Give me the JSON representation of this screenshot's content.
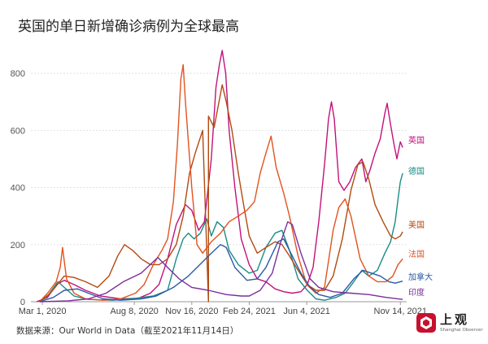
{
  "title": "英国的单日新增确诊病例为全球最高",
  "source": "数据来源：Our World in Data（截至2021年11月14日）",
  "logo": {
    "name": "上观",
    "subtitle": "Shanghai Observer"
  },
  "chart_data": {
    "type": "line",
    "x_range": [
      "2020-02-10",
      "2021-11-25"
    ],
    "ylim": [
      0,
      900
    ],
    "yticks": [
      0,
      200,
      400,
      600,
      800
    ],
    "xticks": [
      {
        "label": "Mar 1, 2020",
        "date": "2020-03-01"
      },
      {
        "label": "Aug 8, 2020",
        "date": "2020-08-08"
      },
      {
        "label": "Nov 16, 2020",
        "date": "2020-11-16"
      },
      {
        "label": "Feb 24, 2021",
        "date": "2021-02-24"
      },
      {
        "label": "Jun 4, 2021",
        "date": "2021-06-04"
      },
      {
        "label": "Nov 14, 2021",
        "date": "2021-11-14"
      }
    ],
    "grid": true,
    "legend": "end-labels",
    "series": [
      {
        "name": "英国",
        "color": "#c2127a",
        "points": [
          [
            "2020-02-20",
            0
          ],
          [
            "2020-03-10",
            15
          ],
          [
            "2020-03-25",
            60
          ],
          [
            "2020-04-08",
            75
          ],
          [
            "2020-04-25",
            60
          ],
          [
            "2020-05-15",
            40
          ],
          [
            "2020-06-10",
            20
          ],
          [
            "2020-07-15",
            10
          ],
          [
            "2020-08-15",
            12
          ],
          [
            "2020-09-05",
            30
          ],
          [
            "2020-09-20",
            60
          ],
          [
            "2020-10-05",
            150
          ],
          [
            "2020-10-20",
            270
          ],
          [
            "2020-11-05",
            340
          ],
          [
            "2020-11-16",
            320
          ],
          [
            "2020-11-28",
            250
          ],
          [
            "2020-12-08",
            280
          ],
          [
            "2020-12-20",
            500
          ],
          [
            "2020-12-28",
            750
          ],
          [
            "2021-01-03",
            830
          ],
          [
            "2021-01-08",
            880
          ],
          [
            "2021-01-14",
            800
          ],
          [
            "2021-01-20",
            600
          ],
          [
            "2021-01-30",
            400
          ],
          [
            "2021-02-10",
            220
          ],
          [
            "2021-02-24",
            130
          ],
          [
            "2021-03-10",
            80
          ],
          [
            "2021-03-25",
            70
          ],
          [
            "2021-04-10",
            45
          ],
          [
            "2021-04-25",
            35
          ],
          [
            "2021-05-10",
            30
          ],
          [
            "2021-05-25",
            35
          ],
          [
            "2021-06-05",
            60
          ],
          [
            "2021-06-15",
            120
          ],
          [
            "2021-06-25",
            280
          ],
          [
            "2021-07-05",
            480
          ],
          [
            "2021-07-12",
            640
          ],
          [
            "2021-07-17",
            700
          ],
          [
            "2021-07-22",
            640
          ],
          [
            "2021-07-30",
            420
          ],
          [
            "2021-08-08",
            390
          ],
          [
            "2021-08-18",
            420
          ],
          [
            "2021-08-28",
            470
          ],
          [
            "2021-09-08",
            500
          ],
          [
            "2021-09-15",
            420
          ],
          [
            "2021-09-22",
            460
          ],
          [
            "2021-10-01",
            520
          ],
          [
            "2021-10-10",
            570
          ],
          [
            "2021-10-18",
            660
          ],
          [
            "2021-10-22",
            695
          ],
          [
            "2021-10-28",
            620
          ],
          [
            "2021-11-03",
            550
          ],
          [
            "2021-11-08",
            500
          ],
          [
            "2021-11-14",
            560
          ],
          [
            "2021-11-18",
            540
          ]
        ]
      },
      {
        "name": "德国",
        "color": "#1a8c86",
        "points": [
          [
            "2020-02-25",
            0
          ],
          [
            "2020-03-10",
            20
          ],
          [
            "2020-03-28",
            70
          ],
          [
            "2020-04-08",
            50
          ],
          [
            "2020-04-25",
            20
          ],
          [
            "2020-05-20",
            8
          ],
          [
            "2020-07-01",
            5
          ],
          [
            "2020-08-10",
            12
          ],
          [
            "2020-09-10",
            20
          ],
          [
            "2020-10-05",
            40
          ],
          [
            "2020-10-20",
            150
          ],
          [
            "2020-11-01",
            220
          ],
          [
            "2020-11-10",
            240
          ],
          [
            "2020-11-20",
            220
          ],
          [
            "2020-12-01",
            240
          ],
          [
            "2020-12-12",
            290
          ],
          [
            "2020-12-20",
            230
          ],
          [
            "2020-12-30",
            280
          ],
          [
            "2021-01-10",
            260
          ],
          [
            "2021-01-20",
            180
          ],
          [
            "2021-02-05",
            130
          ],
          [
            "2021-02-24",
            100
          ],
          [
            "2021-03-10",
            110
          ],
          [
            "2021-03-25",
            190
          ],
          [
            "2021-04-10",
            240
          ],
          [
            "2021-04-22",
            250
          ],
          [
            "2021-05-05",
            180
          ],
          [
            "2021-05-20",
            80
          ],
          [
            "2021-06-05",
            40
          ],
          [
            "2021-06-20",
            10
          ],
          [
            "2021-07-05",
            5
          ],
          [
            "2021-07-25",
            15
          ],
          [
            "2021-08-10",
            30
          ],
          [
            "2021-08-25",
            70
          ],
          [
            "2021-09-08",
            110
          ],
          [
            "2021-09-20",
            90
          ],
          [
            "2021-10-05",
            110
          ],
          [
            "2021-10-18",
            170
          ],
          [
            "2021-10-28",
            210
          ],
          [
            "2021-11-05",
            280
          ],
          [
            "2021-11-10",
            360
          ],
          [
            "2021-11-14",
            420
          ],
          [
            "2021-11-18",
            450
          ]
        ]
      },
      {
        "name": "美国",
        "color": "#b24a12",
        "points": [
          [
            "2020-02-25",
            0
          ],
          [
            "2020-03-15",
            30
          ],
          [
            "2020-04-08",
            90
          ],
          [
            "2020-04-25",
            85
          ],
          [
            "2020-05-15",
            70
          ],
          [
            "2020-06-05",
            50
          ],
          [
            "2020-06-25",
            90
          ],
          [
            "2020-07-10",
            160
          ],
          [
            "2020-07-22",
            200
          ],
          [
            "2020-08-05",
            180
          ],
          [
            "2020-08-20",
            150
          ],
          [
            "2020-09-05",
            130
          ],
          [
            "2020-09-20",
            130
          ],
          [
            "2020-10-05",
            150
          ],
          [
            "2020-10-20",
            200
          ],
          [
            "2020-11-01",
            300
          ],
          [
            "2020-11-12",
            450
          ],
          [
            "2020-11-22",
            520
          ],
          [
            "2020-12-05",
            600
          ],
          [
            "2020-12-15,",
            0
          ],
          [
            "2020-12-15",
            650
          ],
          [
            "2020-12-25",
            610
          ],
          [
            "2021-01-08",
            760
          ],
          [
            "2021-01-15",
            700
          ],
          [
            "2021-01-25",
            600
          ],
          [
            "2021-02-05",
            450
          ],
          [
            "2021-02-15",
            330
          ],
          [
            "2021-02-24",
            230
          ],
          [
            "2021-03-10",
            170
          ],
          [
            "2021-03-25",
            190
          ],
          [
            "2021-04-10",
            210
          ],
          [
            "2021-04-22",
            200
          ],
          [
            "2021-05-05",
            160
          ],
          [
            "2021-05-20",
            110
          ],
          [
            "2021-06-05",
            60
          ],
          [
            "2021-06-20",
            40
          ],
          [
            "2021-07-05",
            40
          ],
          [
            "2021-07-20",
            90
          ],
          [
            "2021-08-05",
            220
          ],
          [
            "2021-08-20",
            390
          ],
          [
            "2021-09-01",
            480
          ],
          [
            "2021-09-10",
            490
          ],
          [
            "2021-09-20",
            430
          ],
          [
            "2021-10-01",
            340
          ],
          [
            "2021-10-15",
            280
          ],
          [
            "2021-10-28",
            230
          ],
          [
            "2021-11-05",
            220
          ],
          [
            "2021-11-14",
            230
          ],
          [
            "2021-11-18",
            245
          ]
        ]
      },
      {
        "name": "法国",
        "color": "#e2531f",
        "points": [
          [
            "2020-02-25",
            0
          ],
          [
            "2020-03-10",
            30
          ],
          [
            "2020-03-25",
            70
          ],
          [
            "2020-04-01",
            120
          ],
          [
            "2020-04-05",
            190
          ],
          [
            "2020-04-12",
            80
          ],
          [
            "2020-04-25",
            30
          ],
          [
            "2020-05-15",
            10
          ],
          [
            "2020-06-15",
            5
          ],
          [
            "2020-07-15",
            10
          ],
          [
            "2020-08-10",
            30
          ],
          [
            "2020-08-25",
            60
          ],
          [
            "2020-09-10",
            130
          ],
          [
            "2020-09-25",
            180
          ],
          [
            "2020-10-05",
            220
          ],
          [
            "2020-10-15",
            350
          ],
          [
            "2020-10-22",
            550
          ],
          [
            "2020-10-28",
            780
          ],
          [
            "2020-11-01",
            830
          ],
          [
            "2020-11-05",
            700
          ],
          [
            "2020-11-10",
            560
          ],
          [
            "2020-11-16",
            400
          ],
          [
            "2020-11-25",
            200
          ],
          [
            "2020-12-05",
            170
          ],
          [
            "2020-12-20",
            210
          ],
          [
            "2021-01-05",
            240
          ],
          [
            "2021-01-20",
            280
          ],
          [
            "2021-02-05",
            300
          ],
          [
            "2021-02-20",
            320
          ],
          [
            "2021-03-05",
            350
          ],
          [
            "2021-03-15",
            450
          ],
          [
            "2021-03-25",
            520
          ],
          [
            "2021-04-03",
            580
          ],
          [
            "2021-04-12",
            470
          ],
          [
            "2021-04-25",
            380
          ],
          [
            "2021-05-05",
            300
          ],
          [
            "2021-05-20",
            160
          ],
          [
            "2021-06-04",
            60
          ],
          [
            "2021-06-20",
            30
          ],
          [
            "2021-07-05",
            50
          ],
          [
            "2021-07-20",
            250
          ],
          [
            "2021-07-30",
            330
          ],
          [
            "2021-08-10",
            360
          ],
          [
            "2021-08-20",
            300
          ],
          [
            "2021-09-05",
            150
          ],
          [
            "2021-09-20",
            90
          ],
          [
            "2021-10-05",
            70
          ],
          [
            "2021-10-20",
            70
          ],
          [
            "2021-11-01",
            90
          ],
          [
            "2021-11-10",
            130
          ],
          [
            "2021-11-18",
            150
          ]
        ]
      },
      {
        "name": "加拿大",
        "color": "#2b5aa8",
        "points": [
          [
            "2020-02-25",
            0
          ],
          [
            "2020-03-20",
            15
          ],
          [
            "2020-04-08",
            40
          ],
          [
            "2020-05-01",
            45
          ],
          [
            "2020-05-20",
            30
          ],
          [
            "2020-06-15",
            10
          ],
          [
            "2020-07-15",
            5
          ],
          [
            "2020-08-20",
            10
          ],
          [
            "2020-09-15",
            20
          ],
          [
            "2020-10-15",
            50
          ],
          [
            "2020-11-10",
            90
          ],
          [
            "2020-11-25",
            120
          ],
          [
            "2020-12-15",
            160
          ],
          [
            "2021-01-05",
            200
          ],
          [
            "2021-01-15",
            190
          ],
          [
            "2021-01-30",
            120
          ],
          [
            "2021-02-20",
            75
          ],
          [
            "2021-03-10",
            80
          ],
          [
            "2021-03-25",
            120
          ],
          [
            "2021-04-15",
            210
          ],
          [
            "2021-04-25",
            220
          ],
          [
            "2021-05-10",
            160
          ],
          [
            "2021-05-25",
            100
          ],
          [
            "2021-06-10",
            50
          ],
          [
            "2021-06-25",
            25
          ],
          [
            "2021-07-15",
            15
          ],
          [
            "2021-08-05",
            30
          ],
          [
            "2021-08-25",
            80
          ],
          [
            "2021-09-10",
            110
          ],
          [
            "2021-09-25",
            100
          ],
          [
            "2021-10-10",
            90
          ],
          [
            "2021-10-25",
            70
          ],
          [
            "2021-11-05",
            65
          ],
          [
            "2021-11-14",
            70
          ],
          [
            "2021-11-18",
            72
          ]
        ]
      },
      {
        "name": "印度",
        "color": "#7b2e9a",
        "points": [
          [
            "2020-02-25",
            0
          ],
          [
            "2020-04-15",
            3
          ],
          [
            "2020-05-20",
            10
          ],
          [
            "2020-06-20",
            30
          ],
          [
            "2020-07-20",
            70
          ],
          [
            "2020-08-20",
            100
          ],
          [
            "2020-09-10",
            140
          ],
          [
            "2020-09-18",
            155
          ],
          [
            "2020-10-05",
            120
          ],
          [
            "2020-10-25",
            80
          ],
          [
            "2020-11-16",
            50
          ],
          [
            "2020-12-15",
            40
          ],
          [
            "2021-01-15",
            25
          ],
          [
            "2021-02-10",
            20
          ],
          [
            "2021-02-24",
            20
          ],
          [
            "2021-03-15",
            40
          ],
          [
            "2021-04-05",
            100
          ],
          [
            "2021-04-20",
            210
          ],
          [
            "2021-05-02",
            280
          ],
          [
            "2021-05-10",
            270
          ],
          [
            "2021-05-25",
            170
          ],
          [
            "2021-06-10",
            80
          ],
          [
            "2021-06-25",
            50
          ],
          [
            "2021-07-20",
            35
          ],
          [
            "2021-08-20",
            30
          ],
          [
            "2021-09-20",
            25
          ],
          [
            "2021-10-20",
            15
          ],
          [
            "2021-11-14",
            9
          ],
          [
            "2021-11-18",
            8
          ]
        ]
      }
    ]
  }
}
